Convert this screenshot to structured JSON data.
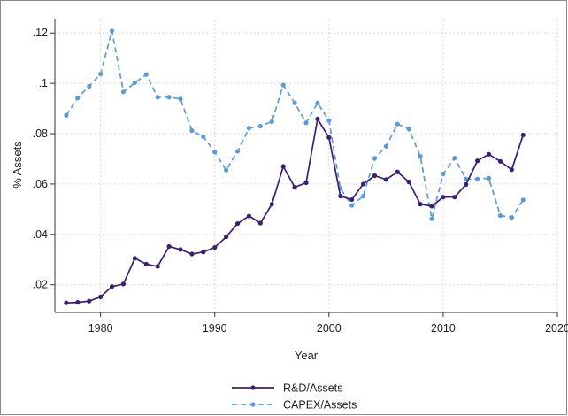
{
  "chart_data": {
    "type": "line",
    "title": "",
    "xlabel": "Year",
    "ylabel": "% Assets",
    "xlim": [
      1976,
      2020
    ],
    "ylim": [
      0.009,
      0.125
    ],
    "x_ticks": [
      1980,
      1990,
      2000,
      2010,
      2020
    ],
    "x_tick_labels": [
      "1980",
      "1990",
      "2000",
      "2010",
      "2020"
    ],
    "y_ticks": [
      0.02,
      0.04,
      0.06,
      0.08,
      0.1,
      0.12
    ],
    "y_tick_labels": [
      ".02",
      ".04",
      ".06",
      ".08",
      ".1",
      ".12"
    ],
    "grid": true,
    "legend_position": "bottom-center",
    "x": [
      1977,
      1978,
      1979,
      1980,
      1981,
      1982,
      1983,
      1984,
      1985,
      1986,
      1987,
      1988,
      1989,
      1990,
      1991,
      1992,
      1993,
      1994,
      1995,
      1996,
      1997,
      1998,
      1999,
      2000,
      2001,
      2002,
      2003,
      2004,
      2005,
      2006,
      2007,
      2008,
      2009,
      2010,
      2011,
      2012,
      2013,
      2014,
      2015,
      2016,
      2017
    ],
    "series": [
      {
        "name": "R&D/Assets",
        "color": "#3a1f73",
        "dash": "solid",
        "values": [
          0.0128,
          0.013,
          0.0135,
          0.0152,
          0.0193,
          0.0203,
          0.0305,
          0.0282,
          0.0273,
          0.0352,
          0.034,
          0.0322,
          0.033,
          0.0348,
          0.039,
          0.0443,
          0.0473,
          0.0445,
          0.052,
          0.067,
          0.0587,
          0.0605,
          0.0858,
          0.0785,
          0.0552,
          0.0538,
          0.06,
          0.0633,
          0.0618,
          0.0648,
          0.0608,
          0.052,
          0.0512,
          0.0548,
          0.0548,
          0.0598,
          0.0692,
          0.0718,
          0.069,
          0.0657,
          0.0795
        ]
      },
      {
        "name": "CAPEX/Assets",
        "color": "#5b9bd5",
        "dash": "dashed",
        "values": [
          0.0873,
          0.0942,
          0.0988,
          0.1037,
          0.1208,
          0.0966,
          0.1002,
          0.1035,
          0.0945,
          0.0945,
          0.0938,
          0.0812,
          0.0788,
          0.0727,
          0.0655,
          0.073,
          0.0822,
          0.083,
          0.0848,
          0.0993,
          0.0922,
          0.0843,
          0.0922,
          0.0852,
          0.0582,
          0.0515,
          0.0552,
          0.0702,
          0.075,
          0.0838,
          0.0818,
          0.071,
          0.0462,
          0.064,
          0.0703,
          0.062,
          0.062,
          0.0623,
          0.0475,
          0.0467,
          0.0537
        ]
      }
    ]
  }
}
